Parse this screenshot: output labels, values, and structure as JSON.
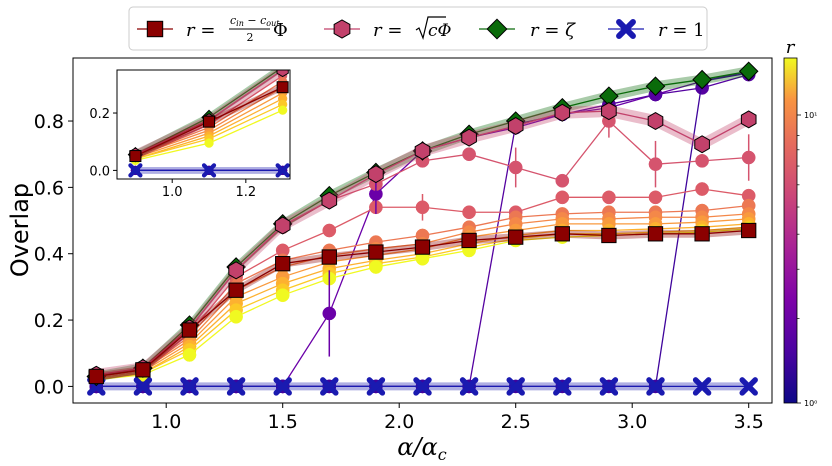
{
  "chart_data": {
    "type": "line",
    "xlabel": "α/α_c",
    "ylabel": "Overlap",
    "xlim": [
      0.6,
      3.6
    ],
    "ylim": [
      -0.05,
      0.99
    ],
    "xticks": [
      1.0,
      1.5,
      2.0,
      2.5,
      3.0,
      3.5
    ],
    "xtick_labels": [
      "1.0",
      "1.5",
      "2.0",
      "2.5",
      "3.0",
      "3.5"
    ],
    "yticks": [
      0.0,
      0.2,
      0.4,
      0.6,
      0.8
    ],
    "ytick_labels": [
      "0.0",
      "0.2",
      "0.4",
      "0.6",
      "0.8"
    ],
    "x": [
      0.7,
      0.9,
      1.1,
      1.3,
      1.5,
      1.7,
      1.9,
      2.1,
      2.3,
      2.5,
      2.7,
      2.9,
      3.1,
      3.3,
      3.5
    ],
    "legend": {
      "placement": "top-center, outside",
      "entries": [
        {
          "name_prefix": "r =",
          "name_math": "(c_in − c_out)/2 · Φ",
          "num": "c",
          "num_sub1": "in",
          "minus": " − ",
          "num2": "c",
          "num_sub2": "out",
          "den": "2",
          "suffix": "Φ",
          "color": "#8b0000",
          "marker": "square"
        },
        {
          "name_prefix": "r =",
          "name_math": "√(cΦ)",
          "sqrt_arg": "cΦ",
          "color": "#c2416b",
          "marker": "hexagon"
        },
        {
          "name_prefix": "r =",
          "name_math": "ζ",
          "color": "#0a6b0a",
          "marker": "diamond"
        },
        {
          "name_prefix": "r =",
          "name_math": "1",
          "color": "#1a1ab0",
          "marker": "x"
        }
      ]
    },
    "colorbar": {
      "label": "r",
      "scale": "log",
      "range": [
        1,
        17
      ],
      "tick_labels": [
        "10⁰",
        "10¹"
      ],
      "colormap": "plasma"
    },
    "series": [
      {
        "name": "r = (c_in − c_out)/2 · Φ",
        "color": "#8b0000",
        "marker": "square",
        "values": [
          0.03,
          0.05,
          0.17,
          0.29,
          0.37,
          0.39,
          0.405,
          0.42,
          0.44,
          0.45,
          0.46,
          0.455,
          0.46,
          0.46,
          0.47
        ]
      },
      {
        "name": "r = √(cΦ)",
        "color": "#c2416b",
        "marker": "hexagon",
        "values": [
          0.035,
          0.055,
          0.175,
          0.35,
          0.485,
          0.56,
          0.64,
          0.71,
          0.75,
          0.785,
          0.825,
          0.83,
          0.8,
          0.73,
          0.805
        ]
      },
      {
        "name": "r = ζ",
        "color": "#0a6b0a",
        "marker": "diamond",
        "values": [
          0.03,
          0.055,
          0.185,
          0.36,
          0.49,
          0.575,
          0.645,
          0.71,
          0.76,
          0.8,
          0.84,
          0.875,
          0.905,
          0.925,
          0.95
        ]
      },
      {
        "name": "r = 1",
        "color": "#1a1ab0",
        "marker": "x",
        "values": [
          0.0,
          0.0,
          0.0,
          0.0,
          0.0,
          0.0,
          0.0,
          0.0,
          0.0,
          0.0,
          0.0,
          0.0,
          0.0,
          0.0,
          0.0
        ]
      }
    ],
    "constant_r_series": [
      {
        "r": 1.3,
        "color": "#6a00a8",
        "marker": "circle",
        "values": [
          0.0,
          0.0,
          0.0,
          0.0,
          0.0,
          0.22,
          0.58,
          0.71,
          0.75,
          0.78,
          0.82,
          0.84,
          0.88,
          0.92,
          0.95
        ]
      },
      {
        "r": 1.7,
        "color": "#5502a0",
        "marker": "circle",
        "values": [
          0.0,
          0.0,
          0.0,
          0.0,
          0.0,
          0.0,
          0.0,
          0.0,
          0.0,
          0.79,
          0.82,
          0.85,
          0.88,
          0.9,
          0.94
        ]
      },
      {
        "r": 2.1,
        "color": "#3f049c",
        "marker": "circle",
        "values": [
          0.0,
          0.0,
          0.0,
          0.0,
          0.0,
          0.0,
          0.0,
          0.0,
          0.0,
          0.0,
          0.0,
          0.0,
          0.0,
          0.92,
          0.945
        ]
      },
      {
        "r": 2.8,
        "color": "#d5546e",
        "marker": "circle",
        "values": [
          0.03,
          0.055,
          0.175,
          0.35,
          0.48,
          0.56,
          0.61,
          0.68,
          0.7,
          0.66,
          0.62,
          0.8,
          0.67,
          0.68,
          0.69
        ]
      },
      {
        "r": 4.0,
        "color": "#dc5b68",
        "marker": "circle",
        "values": [
          0.03,
          0.05,
          0.16,
          0.33,
          0.41,
          0.47,
          0.54,
          0.54,
          0.525,
          0.525,
          0.57,
          0.57,
          0.57,
          0.595,
          0.575
        ]
      },
      {
        "r": 5.0,
        "color": "#ec7853",
        "marker": "circle",
        "values": [
          0.03,
          0.05,
          0.15,
          0.31,
          0.38,
          0.41,
          0.435,
          0.455,
          0.48,
          0.51,
          0.52,
          0.525,
          0.525,
          0.53,
          0.545
        ]
      },
      {
        "r": 6.0,
        "color": "#f48849",
        "marker": "circle",
        "values": [
          0.03,
          0.05,
          0.14,
          0.29,
          0.36,
          0.395,
          0.415,
          0.43,
          0.465,
          0.49,
          0.505,
          0.505,
          0.51,
          0.51,
          0.52
        ]
      },
      {
        "r": 8.0,
        "color": "#f99a3e",
        "marker": "circle",
        "values": [
          0.025,
          0.045,
          0.13,
          0.27,
          0.33,
          0.375,
          0.395,
          0.415,
          0.45,
          0.47,
          0.49,
          0.49,
          0.49,
          0.495,
          0.505
        ]
      },
      {
        "r": 10.0,
        "color": "#fdb130",
        "marker": "circle",
        "values": [
          0.02,
          0.04,
          0.12,
          0.25,
          0.31,
          0.355,
          0.38,
          0.4,
          0.43,
          0.455,
          0.47,
          0.47,
          0.475,
          0.48,
          0.49
        ]
      },
      {
        "r": 12.0,
        "color": "#fcc926",
        "marker": "circle",
        "values": [
          0.02,
          0.04,
          0.11,
          0.23,
          0.29,
          0.34,
          0.37,
          0.39,
          0.42,
          0.445,
          0.46,
          0.46,
          0.465,
          0.47,
          0.48
        ]
      },
      {
        "r": 15.0,
        "color": "#f0f921",
        "marker": "circle",
        "values": [
          0.02,
          0.035,
          0.095,
          0.21,
          0.275,
          0.325,
          0.36,
          0.385,
          0.41,
          0.44,
          0.45,
          0.455,
          0.46,
          0.465,
          0.475
        ]
      }
    ],
    "inset": {
      "xlim": [
        0.85,
        1.32
      ],
      "ylim": [
        -0.03,
        0.35
      ],
      "xticks": [
        1.0,
        1.2
      ],
      "xtick_labels": [
        "1.0",
        "1.2"
      ],
      "yticks": [
        0.0,
        0.2
      ],
      "ytick_labels": [
        "0.0",
        "0.2"
      ]
    }
  }
}
